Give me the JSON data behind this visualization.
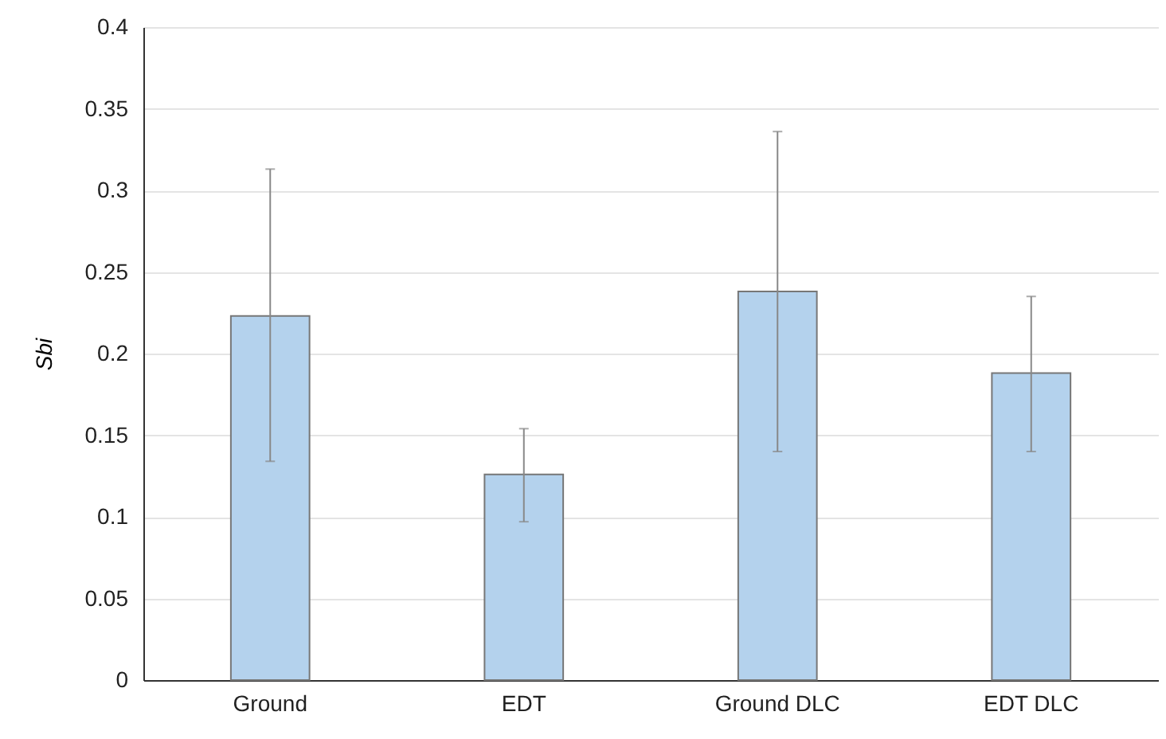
{
  "chart_data": {
    "type": "bar",
    "ylabel": "Sbi",
    "categories": [
      "Ground",
      "EDT",
      "Ground DLC",
      "EDT DLC"
    ],
    "values": [
      0.223,
      0.126,
      0.238,
      0.188
    ],
    "errors": [
      [
        0.134,
        0.313
      ],
      [
        0.097,
        0.154
      ],
      [
        0.14,
        0.336
      ],
      [
        0.14,
        0.235
      ]
    ],
    "color": "#b4d2ed",
    "ylim": [
      0,
      0.4
    ],
    "yticks": [
      0,
      0.05,
      0.1,
      0.15,
      0.2,
      0.25,
      0.3,
      0.35,
      0.4
    ],
    "grid": "y"
  }
}
